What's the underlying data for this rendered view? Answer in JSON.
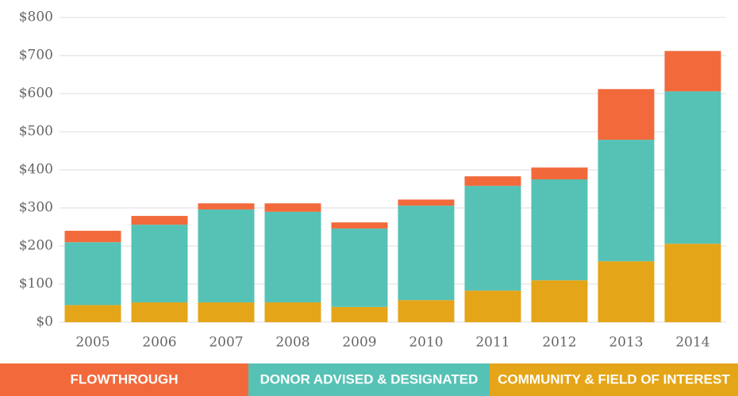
{
  "chart_data": {
    "type": "stacked_bar",
    "categories": [
      "2005",
      "2006",
      "2007",
      "2008",
      "2009",
      "2010",
      "2011",
      "2012",
      "2013",
      "2014"
    ],
    "series": [
      {
        "name": "COMMUNITY & FIELD OF INTEREST",
        "color": "#e5a518",
        "values": [
          45,
          52,
          52,
          52,
          40,
          58,
          83,
          110,
          160,
          206
        ]
      },
      {
        "name": "DONOR ADVISED & DESIGNATED",
        "color": "#56c2b5",
        "values": [
          165,
          204,
          244,
          238,
          206,
          248,
          275,
          265,
          319,
          400
        ]
      },
      {
        "name": "FLOWTHROUGH",
        "color": "#f26a3c",
        "values": [
          30,
          23,
          16,
          22,
          16,
          16,
          25,
          31,
          133,
          106
        ]
      }
    ],
    "ylim": [
      0,
      800
    ],
    "yticks": [
      {
        "value": 0,
        "label": "$0"
      },
      {
        "value": 100,
        "label": "$100"
      },
      {
        "value": 200,
        "label": "$200"
      },
      {
        "value": 300,
        "label": "$300"
      },
      {
        "value": 400,
        "label": "$400"
      },
      {
        "value": 500,
        "label": "$500"
      },
      {
        "value": 600,
        "label": "$600"
      },
      {
        "value": 700,
        "label": "$700"
      },
      {
        "value": 800,
        "label": "$800"
      }
    ],
    "grid": true,
    "legend": "bottom"
  }
}
